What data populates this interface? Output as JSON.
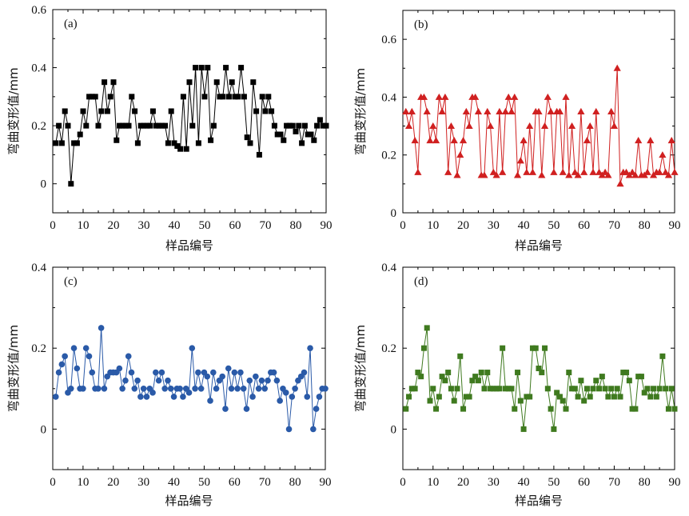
{
  "chart_data": [
    {
      "type": "line",
      "panel_label": "(a)",
      "xlabel": "样品编号",
      "ylabel": "弯曲变形值/mm",
      "xlim": [
        0,
        90
      ],
      "ylim": [
        -0.1,
        0.6
      ],
      "xticks": [
        "0",
        "10",
        "20",
        "30",
        "40",
        "50",
        "60",
        "70",
        "80",
        "90"
      ],
      "yticks": [
        "0",
        "0.2",
        "0.4",
        "0.6"
      ],
      "ytick_values": [
        0,
        0.2,
        0.4,
        0.6
      ],
      "color": "#000000",
      "marker": "square",
      "x": [
        1,
        2,
        3,
        4,
        5,
        6,
        7,
        8,
        9,
        10,
        11,
        12,
        13,
        14,
        15,
        16,
        17,
        18,
        19,
        20,
        21,
        22,
        23,
        24,
        25,
        26,
        27,
        28,
        29,
        30,
        31,
        32,
        33,
        34,
        35,
        36,
        37,
        38,
        39,
        40,
        41,
        42,
        43,
        44,
        45,
        46,
        47,
        48,
        49,
        50,
        51,
        52,
        53,
        54,
        55,
        56,
        57,
        58,
        59,
        60,
        61,
        62,
        63,
        64,
        65,
        66,
        67,
        68,
        69,
        70,
        71,
        72,
        73,
        74,
        75,
        76,
        77,
        78,
        79,
        80,
        81,
        82,
        83,
        84,
        85,
        86,
        87,
        88,
        89,
        90
      ],
      "values": [
        0.14,
        0.2,
        0.14,
        0.25,
        0.2,
        0,
        0.14,
        0.14,
        0.17,
        0.25,
        0.2,
        0.3,
        0.3,
        0.3,
        0.2,
        0.25,
        0.35,
        0.25,
        0.3,
        0.35,
        0.15,
        0.2,
        0.2,
        0.2,
        0.2,
        0.3,
        0.25,
        0.14,
        0.2,
        0.2,
        0.2,
        0.2,
        0.25,
        0.2,
        0.2,
        0.2,
        0.2,
        0.14,
        0.25,
        0.14,
        0.13,
        0.12,
        0.3,
        0.12,
        0.35,
        0.2,
        0.4,
        0.14,
        0.4,
        0.3,
        0.4,
        0.15,
        0.2,
        0.35,
        0.3,
        0.3,
        0.4,
        0.3,
        0.35,
        0.3,
        0.3,
        0.4,
        0.3,
        0.16,
        0.14,
        0.35,
        0.25,
        0.1,
        0.3,
        0.25,
        0.3,
        0.25,
        0.2,
        0.17,
        0.17,
        0.15,
        0.2,
        0.2,
        0.2,
        0.18,
        0.2,
        0.14,
        0.2,
        0.17,
        0.17,
        0.15,
        0.2,
        0.22,
        0.2,
        0.2
      ]
    },
    {
      "type": "line",
      "panel_label": "(b)",
      "xlabel": "样品编号",
      "ylabel": "弯曲变形值/mm",
      "xlim": [
        0,
        90
      ],
      "ylim": [
        0,
        0.7
      ],
      "xticks": [
        "0",
        "10",
        "20",
        "30",
        "40",
        "50",
        "60",
        "70",
        "80",
        "90"
      ],
      "yticks": [
        "0",
        "0.2",
        "0.4",
        "0.6"
      ],
      "ytick_values": [
        0,
        0.2,
        0.4,
        0.6
      ],
      "color": "#d02020",
      "marker": "triangle",
      "x": [
        1,
        2,
        3,
        4,
        5,
        6,
        7,
        8,
        9,
        10,
        11,
        12,
        13,
        14,
        15,
        16,
        17,
        18,
        19,
        20,
        21,
        22,
        23,
        24,
        25,
        26,
        27,
        28,
        29,
        30,
        31,
        32,
        33,
        34,
        35,
        36,
        37,
        38,
        39,
        40,
        41,
        42,
        43,
        44,
        45,
        46,
        47,
        48,
        49,
        50,
        51,
        52,
        53,
        54,
        55,
        56,
        57,
        58,
        59,
        60,
        61,
        62,
        63,
        64,
        65,
        66,
        67,
        68,
        69,
        70,
        71,
        72,
        73,
        74,
        75,
        76,
        77,
        78,
        79,
        80,
        81,
        82,
        83,
        84,
        85,
        86,
        87,
        88,
        89,
        90
      ],
      "values": [
        0.35,
        0.3,
        0.35,
        0.25,
        0.14,
        0.4,
        0.4,
        0.35,
        0.25,
        0.3,
        0.25,
        0.4,
        0.35,
        0.4,
        0.14,
        0.3,
        0.25,
        0.13,
        0.2,
        0.25,
        0.35,
        0.3,
        0.4,
        0.4,
        0.35,
        0.13,
        0.13,
        0.35,
        0.3,
        0.14,
        0.13,
        0.35,
        0.14,
        0.35,
        0.4,
        0.35,
        0.4,
        0.13,
        0.18,
        0.25,
        0.14,
        0.3,
        0.14,
        0.35,
        0.35,
        0.13,
        0.3,
        0.4,
        0.35,
        0.14,
        0.35,
        0.35,
        0.14,
        0.4,
        0.13,
        0.3,
        0.14,
        0.13,
        0.35,
        0.14,
        0.25,
        0.3,
        0.14,
        0.35,
        0.14,
        0.13,
        0.14,
        0.13,
        0.35,
        0.3,
        0.5,
        0.1,
        0.14,
        0.14,
        0.13,
        0.14,
        0.13,
        0.25,
        0.13,
        0.13,
        0.14,
        0.25,
        0.13,
        0.14,
        0.14,
        0.2,
        0.14,
        0.13,
        0.25,
        0.14
      ]
    },
    {
      "type": "line",
      "panel_label": "(c)",
      "xlabel": "样品编号",
      "ylabel": "弯曲变形值/mm",
      "xlim": [
        0,
        90
      ],
      "ylim": [
        -0.1,
        0.4
      ],
      "xticks": [
        "0",
        "10",
        "20",
        "30",
        "40",
        "50",
        "60",
        "70",
        "80",
        "90"
      ],
      "yticks": [
        "0",
        "0.2",
        "0.4"
      ],
      "ytick_values": [
        0,
        0.2,
        0.4
      ],
      "color": "#2a5aa8",
      "marker": "circle",
      "x": [
        1,
        2,
        3,
        4,
        5,
        6,
        7,
        8,
        9,
        10,
        11,
        12,
        13,
        14,
        15,
        16,
        17,
        18,
        19,
        20,
        21,
        22,
        23,
        24,
        25,
        26,
        27,
        28,
        29,
        30,
        31,
        32,
        33,
        34,
        35,
        36,
        37,
        38,
        39,
        40,
        41,
        42,
        43,
        44,
        45,
        46,
        47,
        48,
        49,
        50,
        51,
        52,
        53,
        54,
        55,
        56,
        57,
        58,
        59,
        60,
        61,
        62,
        63,
        64,
        65,
        66,
        67,
        68,
        69,
        70,
        71,
        72,
        73,
        74,
        75,
        76,
        77,
        78,
        79,
        80,
        81,
        82,
        83,
        84,
        85,
        86,
        87,
        88,
        89,
        90
      ],
      "values": [
        0.08,
        0.14,
        0.16,
        0.18,
        0.09,
        0.1,
        0.2,
        0.15,
        0.1,
        0.1,
        0.2,
        0.18,
        0.14,
        0.1,
        0.1,
        0.25,
        0.1,
        0.13,
        0.14,
        0.14,
        0.14,
        0.15,
        0.1,
        0.12,
        0.18,
        0.14,
        0.1,
        0.12,
        0.08,
        0.1,
        0.08,
        0.1,
        0.09,
        0.14,
        0.12,
        0.14,
        0.1,
        0.12,
        0.1,
        0.08,
        0.1,
        0.1,
        0.08,
        0.1,
        0.09,
        0.2,
        0.1,
        0.14,
        0.1,
        0.14,
        0.13,
        0.07,
        0.14,
        0.1,
        0.12,
        0.13,
        0.05,
        0.15,
        0.1,
        0.14,
        0.1,
        0.14,
        0.1,
        0.05,
        0.12,
        0.08,
        0.13,
        0.1,
        0.12,
        0.1,
        0.12,
        0.14,
        0.14,
        0.12,
        0.07,
        0.1,
        0.09,
        0,
        0.08,
        0.1,
        0.12,
        0.13,
        0.14,
        0.08,
        0.2,
        0,
        0.05,
        0.08,
        0.1,
        0.1
      ]
    },
    {
      "type": "line",
      "panel_label": "(d)",
      "xlabel": "样品编号",
      "ylabel": "弯曲变形值/mm",
      "xlim": [
        0,
        90
      ],
      "ylim": [
        -0.1,
        0.4
      ],
      "xticks": [
        "0",
        "10",
        "20",
        "30",
        "40",
        "50",
        "60",
        "70",
        "80",
        "90"
      ],
      "yticks": [
        "0",
        "0.2",
        "0.4"
      ],
      "ytick_values": [
        0,
        0.2,
        0.4
      ],
      "color": "#3f7a1f",
      "marker": "square",
      "x": [
        1,
        2,
        3,
        4,
        5,
        6,
        7,
        8,
        9,
        10,
        11,
        12,
        13,
        14,
        15,
        16,
        17,
        18,
        19,
        20,
        21,
        22,
        23,
        24,
        25,
        26,
        27,
        28,
        29,
        30,
        31,
        32,
        33,
        34,
        35,
        36,
        37,
        38,
        39,
        40,
        41,
        42,
        43,
        44,
        45,
        46,
        47,
        48,
        49,
        50,
        51,
        52,
        53,
        54,
        55,
        56,
        57,
        58,
        59,
        60,
        61,
        62,
        63,
        64,
        65,
        66,
        67,
        68,
        69,
        70,
        71,
        72,
        73,
        74,
        75,
        76,
        77,
        78,
        79,
        80,
        81,
        82,
        83,
        84,
        85,
        86,
        87,
        88,
        89,
        90
      ],
      "values": [
        0.05,
        0.08,
        0.1,
        0.1,
        0.14,
        0.13,
        0.2,
        0.25,
        0.07,
        0.1,
        0.05,
        0.08,
        0.13,
        0.12,
        0.14,
        0.1,
        0.07,
        0.1,
        0.18,
        0.05,
        0.08,
        0.08,
        0.12,
        0.13,
        0.12,
        0.14,
        0.1,
        0.14,
        0.1,
        0.1,
        0.1,
        0.1,
        0.2,
        0.1,
        0.1,
        0.1,
        0.05,
        0.14,
        0.07,
        0,
        0.08,
        0.08,
        0.2,
        0.2,
        0.15,
        0.14,
        0.2,
        0.1,
        0.05,
        0,
        0.09,
        0.08,
        0.07,
        0.05,
        0.14,
        0.1,
        0.1,
        0.08,
        0.12,
        0.07,
        0.1,
        0.08,
        0.1,
        0.12,
        0.1,
        0.13,
        0.1,
        0.08,
        0.1,
        0.08,
        0.1,
        0.08,
        0.14,
        0.14,
        0.12,
        0.05,
        0.05,
        0.13,
        0.13,
        0.09,
        0.1,
        0.08,
        0.1,
        0.08,
        0.1,
        0.18,
        0.1,
        0.05,
        0.1,
        0.05
      ]
    }
  ]
}
